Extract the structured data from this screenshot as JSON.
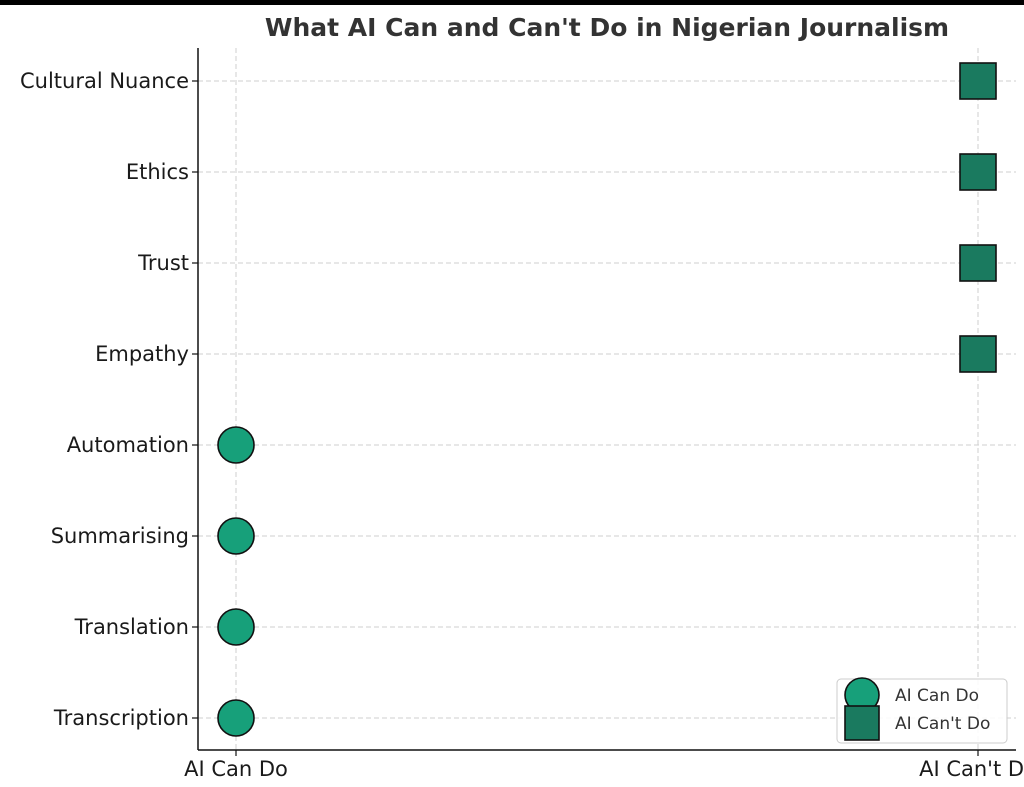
{
  "chart_data": {
    "type": "scatter",
    "title": "What AI Can and Can't Do in Nigerian Journalism",
    "xlabel": "",
    "ylabel": "",
    "x_categories": [
      "AI Can Do",
      "AI Can't Do"
    ],
    "y_categories": [
      "Transcription",
      "Translation",
      "Summarising",
      "Automation",
      "Empathy",
      "Trust",
      "Ethics",
      "Cultural Nuance"
    ],
    "grid": true,
    "legend_position": "bottom-right",
    "series": [
      {
        "name": "AI Can Do",
        "marker": "circle",
        "color": "#17a07a",
        "points": [
          {
            "x": "AI Can Do",
            "y": "Transcription"
          },
          {
            "x": "AI Can Do",
            "y": "Translation"
          },
          {
            "x": "AI Can Do",
            "y": "Summarising"
          },
          {
            "x": "AI Can Do",
            "y": "Automation"
          }
        ]
      },
      {
        "name": "AI Can't Do",
        "marker": "square",
        "color": "#1a7a5f",
        "points": [
          {
            "x": "AI Can't Do",
            "y": "Empathy"
          },
          {
            "x": "AI Can't Do",
            "y": "Trust"
          },
          {
            "x": "AI Can't Do",
            "y": "Ethics"
          },
          {
            "x": "AI Can't Do",
            "y": "Cultural Nuance"
          }
        ]
      }
    ]
  }
}
